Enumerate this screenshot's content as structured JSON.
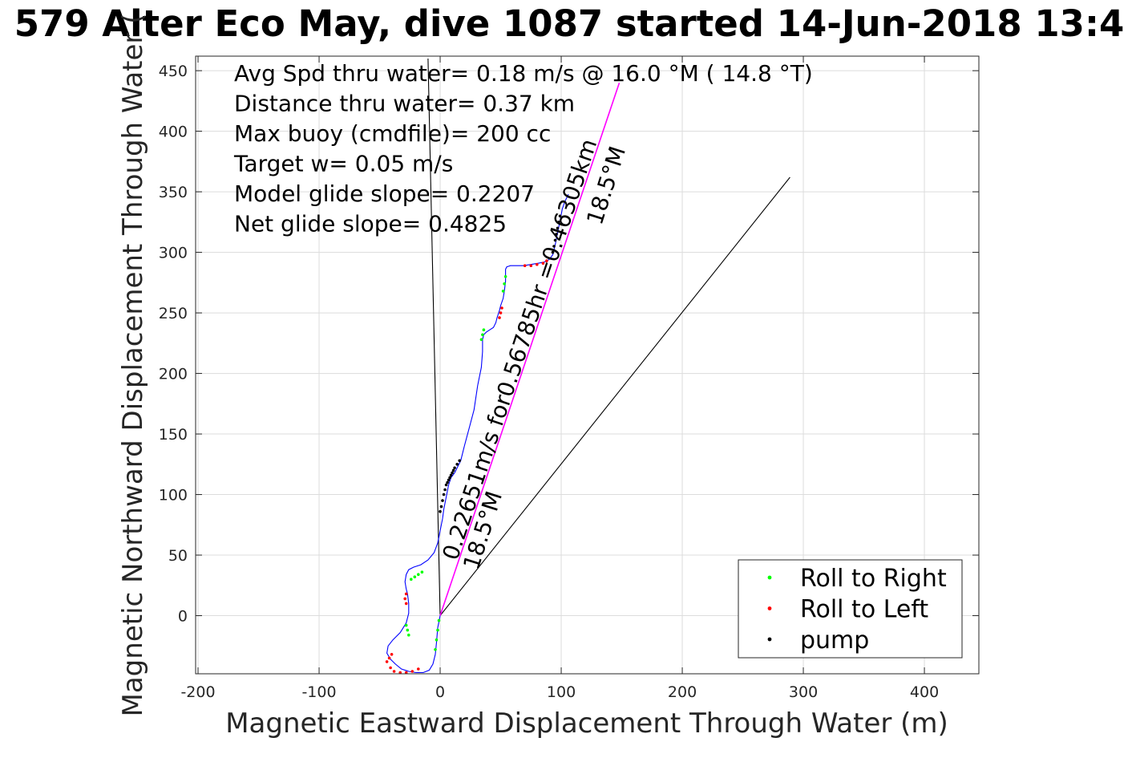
{
  "chart_data": {
    "type": "line",
    "title": "579 Alter Eco May, dive 1087 started 14-Jun-2018 13:4",
    "xlabel": "Magnetic Eastward Displacement Through Water (m)",
    "ylabel": "Magnetic Northward Displacement Through Water (",
    "xlim": [
      -202,
      445
    ],
    "ylim": [
      -48,
      462
    ],
    "grid": true,
    "x_ticks": [
      -200,
      -100,
      0,
      100,
      200,
      300,
      400
    ],
    "x_tick_labels": [
      "-200",
      "-100",
      "0",
      "100",
      "200",
      "300",
      "400"
    ],
    "y_ticks": [
      0,
      50,
      100,
      150,
      200,
      250,
      300,
      350,
      400,
      450
    ],
    "y_tick_labels": [
      "0",
      "50",
      "100",
      "150",
      "200",
      "250",
      "300",
      "350",
      "400",
      "450"
    ],
    "annotations": [
      "Avg Spd thru water=  0.18 m/s @  16.0 °M ( 14.8 °T)",
      "Distance thru water=  0.37 km",
      "Max buoy (cmdfile)= 200 cc",
      "Target w= 0.05 m/s",
      "Model glide slope= 0.2207",
      "Net glide slope= 0.4825"
    ],
    "segment_labels": [
      {
        "text": "0.22651m/s for0.56785hr =0.46305km",
        "x1": 0,
        "y1": 0,
        "x2": 147,
        "y2": 440
      },
      {
        "text": "18.5°M",
        "x1": 20,
        "y1": 40,
        "x2": 147,
        "y2": 440
      },
      {
        "text": "18.5°M",
        "x1": 100,
        "y1": 292,
        "x2": 147,
        "y2": 440
      }
    ],
    "legend": {
      "placement": "bottom-right",
      "entries": [
        {
          "label": "Roll to Right",
          "color": "#00ff00"
        },
        {
          "label": "Roll to Left",
          "color": "#ff0000"
        },
        {
          "label": "pump",
          "color": "#000000"
        }
      ]
    },
    "colors": {
      "track": "#0000ff",
      "roll_right": "#00ff00",
      "roll_left": "#ff0000",
      "pump": "#000000",
      "heading_line": "#ff00ff",
      "reference_line": "#000000"
    },
    "series": [
      {
        "role": "track",
        "x": [
          0,
          -2,
          -3,
          -4,
          -6,
          -9,
          -14,
          -20,
          -26,
          -32,
          -37,
          -41,
          -44,
          -43,
          -39,
          -33,
          -28,
          -26,
          -26,
          -27,
          -28,
          -29,
          -28,
          -26,
          -22,
          -16,
          -10,
          -5,
          -2,
          0,
          2,
          3,
          5,
          7,
          9,
          12,
          14,
          17,
          20,
          24,
          28,
          31,
          34,
          35,
          35,
          36,
          38,
          41,
          44,
          46,
          47,
          49,
          50,
          52,
          53,
          54,
          54,
          54,
          55,
          58,
          63,
          69,
          75,
          81,
          86,
          90,
          93,
          95,
          97,
          99,
          101,
          103,
          106
        ],
        "y": [
          0,
          -10,
          -22,
          -32,
          -40,
          -45,
          -47,
          -47,
          -46,
          -44,
          -40,
          -36,
          -31,
          -25,
          -20,
          -14,
          -6,
          2,
          10,
          18,
          22,
          28,
          34,
          38,
          40,
          42,
          46,
          52,
          60,
          70,
          80,
          88,
          98,
          108,
          114,
          118,
          122,
          128,
          140,
          155,
          170,
          190,
          205,
          218,
          228,
          232,
          234,
          236,
          238,
          242,
          246,
          252,
          256,
          262,
          268,
          276,
          282,
          286,
          288,
          289,
          289,
          289,
          290,
          291,
          292,
          294,
          298,
          306,
          316,
          326,
          336,
          342,
          348
        ]
      },
      {
        "role": "heading_line",
        "x": [
          0,
          148
        ],
        "y": [
          0,
          440
        ]
      },
      {
        "role": "reference_line",
        "x": [
          0,
          289
        ],
        "y": [
          0,
          362
        ]
      },
      {
        "role": "reference_line",
        "x": [
          0,
          -10
        ],
        "y": [
          0,
          460
        ]
      },
      {
        "name": "Roll to Right",
        "role": "roll_right",
        "x": [
          -1,
          -2,
          -3,
          -4,
          -26,
          -27,
          -28,
          -24,
          -21,
          -18,
          -15,
          34,
          35,
          36,
          52,
          53,
          54
        ],
        "y": [
          -4,
          -12,
          -20,
          -28,
          -16,
          -12,
          -8,
          30,
          32,
          34,
          36,
          228,
          232,
          236,
          268,
          274,
          280
        ]
      },
      {
        "name": "Roll to Left",
        "role": "roll_left",
        "x": [
          -40,
          -42,
          -44,
          -41,
          -38,
          -33,
          -28,
          -23,
          -18,
          -28,
          -29,
          -28,
          49,
          50,
          51,
          70,
          75,
          80,
          85,
          88
        ],
        "y": [
          -32,
          -35,
          -38,
          -43,
          -46,
          -47,
          -47,
          -46,
          -44,
          10,
          14,
          18,
          246,
          250,
          254,
          289,
          289,
          290,
          291,
          293
        ]
      },
      {
        "name": "pump",
        "role": "pump",
        "x": [
          0,
          1,
          2,
          3,
          4,
          5,
          6,
          7,
          8,
          9,
          10,
          11,
          12,
          14,
          16,
          93,
          94,
          95,
          96,
          97,
          98,
          99
        ],
        "y": [
          86,
          90,
          95,
          100,
          104,
          108,
          110,
          112,
          114,
          116,
          118,
          120,
          122,
          125,
          128,
          300,
          305,
          310,
          315,
          320,
          325,
          330
        ]
      }
    ]
  }
}
